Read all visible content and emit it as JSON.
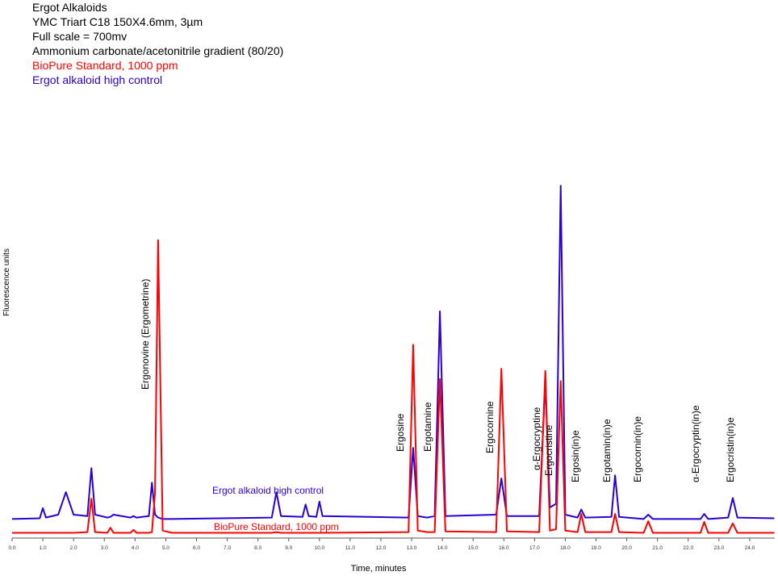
{
  "chart_data": {
    "type": "line",
    "title": "Ergot Alkaloids",
    "subtitle": [
      "YMC Triart C18 150X4.6mm, 3µm",
      "Full scale = 700mv",
      "Ammonium carbonate/acetonitrile gradient (80/20)"
    ],
    "x_label": "Time, minutes",
    "y_label": "Fluorescence units",
    "x": [
      0,
      0.9,
      1.0,
      1.1,
      1.5,
      1.75,
      2.0,
      2.45,
      2.58,
      2.7,
      3.1,
      3.2,
      3.3,
      3.85,
      3.95,
      4.05,
      4.45,
      4.55,
      4.65,
      4.75,
      4.9,
      5.2,
      8.45,
      8.6,
      8.75,
      9.45,
      9.55,
      9.65,
      9.9,
      10.0,
      10.1,
      12.9,
      13.05,
      13.2,
      13.5,
      13.75,
      13.92,
      14.1,
      15.75,
      15.92,
      16.1,
      17.15,
      17.35,
      17.5,
      17.7,
      17.85,
      18.0,
      18.4,
      18.52,
      18.65,
      19.5,
      19.62,
      19.75,
      20.55,
      20.7,
      20.85,
      22.4,
      22.52,
      22.65,
      23.3,
      23.45,
      23.6,
      24.8
    ],
    "series": [
      {
        "name": "BioPure Standard, 1000 ppm",
        "color": "#ff0000",
        "values": [
          5,
          5,
          5,
          5,
          5,
          5,
          5,
          6,
          52,
          6,
          5,
          12,
          5,
          5,
          9,
          5,
          5,
          6,
          60,
          408,
          8,
          5,
          5,
          6,
          5,
          5,
          5,
          5,
          5,
          5,
          5,
          6,
          264,
          8,
          6,
          6,
          217,
          7,
          6,
          231,
          7,
          6,
          228,
          8,
          10,
          214,
          8,
          6,
          31,
          6,
          6,
          31,
          6,
          5,
          21,
          5,
          5,
          20,
          5,
          5,
          18,
          5,
          5
        ]
      },
      {
        "name": "Ergot alkaloid high control",
        "color": "#2b00d4",
        "values": [
          24,
          25,
          39,
          26,
          30,
          61,
          30,
          28,
          94,
          30,
          26,
          27,
          30,
          26,
          28,
          26,
          28,
          74,
          30,
          26,
          24,
          24,
          26,
          61,
          28,
          27,
          44,
          28,
          27,
          48,
          28,
          26,
          122,
          28,
          26,
          28,
          310,
          28,
          30,
          80,
          28,
          28,
          214,
          40,
          45,
          483,
          30,
          26,
          37,
          26,
          27,
          84,
          27,
          24,
          30,
          24,
          24,
          31,
          24,
          26,
          53,
          26,
          25
        ]
      }
    ],
    "xlim": [
      0,
      24.8
    ],
    "ylim": [
      0,
      600
    ],
    "xticks": [
      {
        "value": 0,
        "label": "0.0"
      },
      {
        "value": 1,
        "label": "1.0"
      },
      {
        "value": 2,
        "label": "2.0"
      },
      {
        "value": 3,
        "label": "3.0"
      },
      {
        "value": 4,
        "label": "4.0"
      },
      {
        "value": 5,
        "label": "5.0"
      },
      {
        "value": 6,
        "label": "6.0"
      },
      {
        "value": 7,
        "label": "7.0"
      },
      {
        "value": 8,
        "label": "8.0"
      },
      {
        "value": 9,
        "label": "9.0"
      },
      {
        "value": 10,
        "label": "10.0"
      },
      {
        "value": 11,
        "label": "11.0"
      },
      {
        "value": 12,
        "label": "12.0"
      },
      {
        "value": 13,
        "label": "13.0"
      },
      {
        "value": 14,
        "label": "14.0"
      },
      {
        "value": 15,
        "label": "15.0"
      },
      {
        "value": 16,
        "label": "16.0"
      },
      {
        "value": 17,
        "label": "17.0"
      },
      {
        "value": 18,
        "label": "18.0"
      },
      {
        "value": 19,
        "label": "19.0"
      },
      {
        "value": 20,
        "label": "20.0"
      },
      {
        "value": 21,
        "label": "21.0"
      },
      {
        "value": 22,
        "label": "22.0"
      },
      {
        "value": 23,
        "label": "23.0"
      },
      {
        "value": 24,
        "label": "24.0"
      }
    ],
    "annotations": [
      "Ergonovine (Ergometrine)",
      "Ergosine",
      "Ergotamine",
      "Ergocornine",
      "α-Ergocryptine",
      "Ergocristine",
      "Ergosin(in)e",
      "Ergotamin(in)e",
      "Ergocornin(in)e",
      "α-Ergocryptin(in)e",
      "Ergocristin(in)e"
    ]
  }
}
